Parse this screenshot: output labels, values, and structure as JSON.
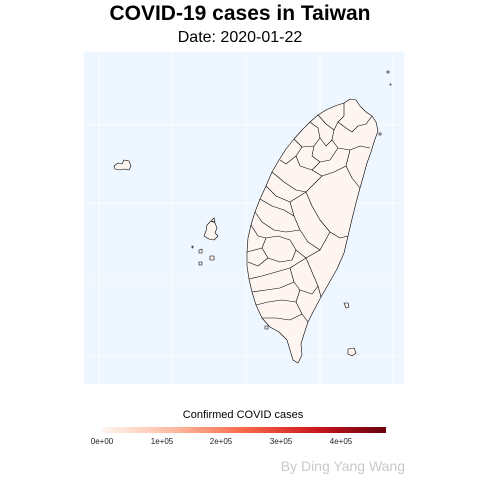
{
  "title": "COVID-19 cases in Taiwan",
  "subtitle": "Date: 2020-01-22",
  "map": {
    "panel_background": "#eef6ff",
    "grid_color": "#ffffff",
    "region_fill": "#fff5f0",
    "region_border": "#000000"
  },
  "legend": {
    "title": "Confirmed COVID cases",
    "palette": [
      "#fff5f0",
      "#fcbba1",
      "#fb6a4a",
      "#cb181d",
      "#67000d"
    ],
    "ticks": [
      "0e+00",
      "1e+05",
      "2e+05",
      "3e+05",
      "4e+05"
    ]
  },
  "caption": "By Ding Yang Wang"
}
